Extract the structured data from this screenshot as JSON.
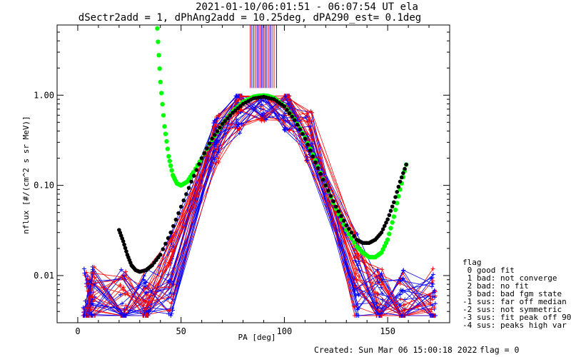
{
  "chart_data": {
    "type": "line",
    "title_line1": "2021-01-10/06:01:51 - 06:07:54 UT ela",
    "title_line2": "dSectr2add = 1, dPhAng2add = 10.25deg, dPA290_est=   0.1deg",
    "xlabel": "PA [deg]",
    "ylabel": "nflux [#/(cm^2 s sr MeV)]",
    "xlim": [
      -10,
      180
    ],
    "ylim": [
      0.003,
      6
    ],
    "yscale": "log",
    "x_ticks": [
      {
        "value": 0,
        "label": "0"
      },
      {
        "value": 50,
        "label": "50"
      },
      {
        "value": 100,
        "label": "100"
      },
      {
        "value": 150,
        "label": "150"
      }
    ],
    "y_ticks": [
      {
        "value": 0.01,
        "label": "0.01"
      },
      {
        "value": 0.1,
        "label": "0.10"
      },
      {
        "value": 1.0,
        "label": "1.00"
      }
    ],
    "grid": false,
    "colors": {
      "red_traces": "#ff0000",
      "blue_traces": "#0000ff",
      "green_fit": "#00ff00",
      "black_fit": "#000000",
      "vline_mix": [
        "#ff0000",
        "#0000ff",
        "#7700aa"
      ]
    },
    "series_fit_green": {
      "x": [
        38.5,
        40,
        42,
        44,
        46,
        48,
        50,
        53,
        56,
        60,
        65,
        70,
        75,
        80,
        85,
        88,
        90,
        92,
        95,
        100,
        105,
        110,
        115,
        120,
        125,
        130,
        135,
        138,
        141,
        144,
        147,
        150,
        153,
        156,
        159
      ],
      "y": [
        5.5,
        1.4,
        0.45,
        0.21,
        0.13,
        0.105,
        0.1,
        0.11,
        0.14,
        0.2,
        0.32,
        0.48,
        0.66,
        0.84,
        0.96,
        0.985,
        0.99,
        0.98,
        0.93,
        0.76,
        0.54,
        0.34,
        0.19,
        0.1,
        0.055,
        0.032,
        0.021,
        0.018,
        0.016,
        0.016,
        0.018,
        0.025,
        0.045,
        0.09,
        0.17
      ]
    },
    "series_fit_black": {
      "x": [
        20,
        22,
        24,
        26,
        28,
        30,
        33,
        36,
        40,
        45,
        50,
        55,
        60,
        65,
        70,
        75,
        80,
        85,
        90,
        95,
        100,
        105,
        110,
        115,
        120,
        125,
        130,
        135,
        138,
        141,
        144,
        147,
        150,
        153,
        156,
        159
      ],
      "y": [
        0.032,
        0.024,
        0.017,
        0.013,
        0.0115,
        0.011,
        0.0115,
        0.013,
        0.017,
        0.03,
        0.058,
        0.11,
        0.2,
        0.33,
        0.48,
        0.64,
        0.8,
        0.92,
        0.96,
        0.9,
        0.75,
        0.53,
        0.33,
        0.18,
        0.1,
        0.058,
        0.036,
        0.025,
        0.023,
        0.023,
        0.025,
        0.03,
        0.042,
        0.065,
        0.11,
        0.17
      ]
    },
    "sample_pa": [
      4,
      7,
      22,
      33,
      45,
      67,
      78,
      90,
      101,
      112,
      135,
      146,
      157,
      172
    ],
    "pa_ticks_top": [
      83.5,
      84.3,
      85.2,
      86.0,
      86.8,
      87.5,
      88.2,
      88.9,
      89.5,
      90.1,
      90.8,
      91.5,
      92.3,
      93.1,
      94.0,
      95.0,
      96.2
    ],
    "legend": {
      "title": "flag",
      "items": [
        " 0 good fit",
        " 1 bad: not converge",
        " 2 bad: no fit",
        " 3 bad: bad fgm state",
        "-1 sus: far off median",
        "-2 sus: not symmetric",
        "-3 sus: fit peak off 90",
        "-4 sus: peaks high var"
      ]
    },
    "footer": {
      "created": "Created: Sun Mar 06 15:00:18 2022",
      "flag": "flag = 0"
    }
  }
}
